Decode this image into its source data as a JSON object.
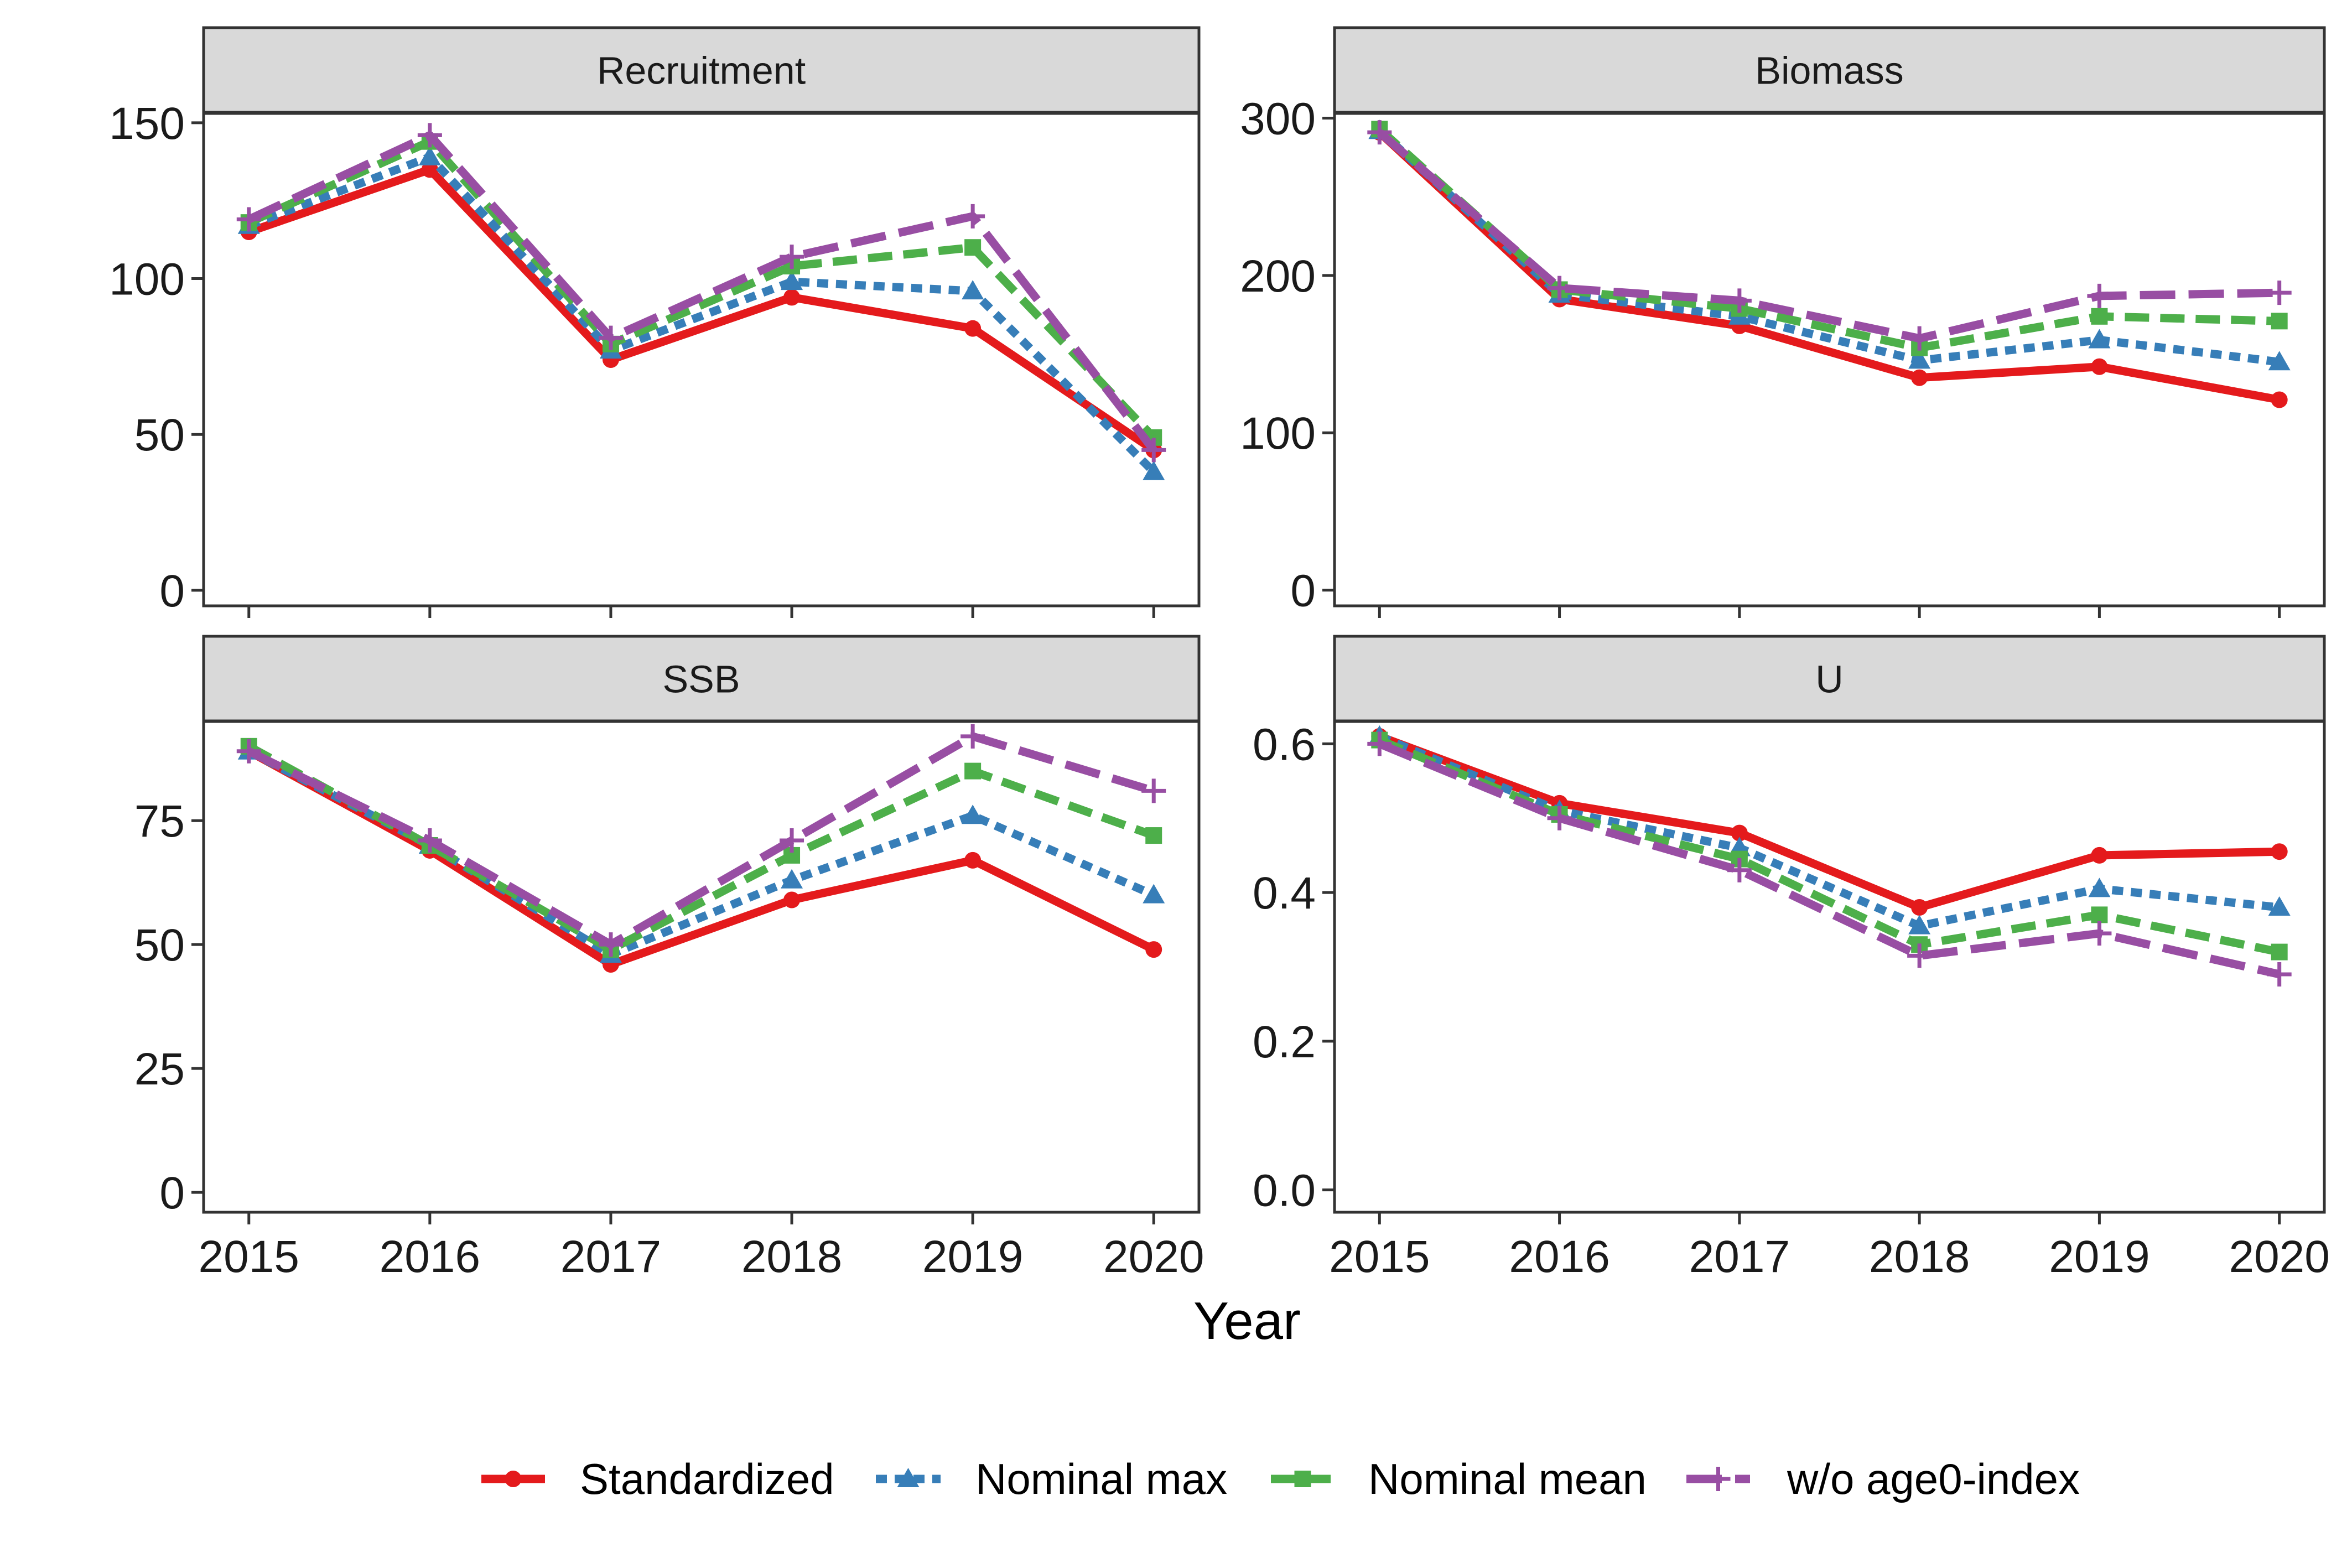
{
  "chart_data": [
    {
      "type": "line",
      "title": "Recruitment",
      "xlabel": "Year",
      "ylabel": "",
      "x": [
        2015,
        2016,
        2017,
        2018,
        2019,
        2020
      ],
      "ylim": [
        -5,
        153
      ],
      "yticks": [
        0,
        50,
        100,
        150
      ],
      "ytick_labels": [
        "0",
        "50",
        "100",
        "150"
      ],
      "grid": false,
      "series": [
        {
          "name": "Standardized",
          "values": [
            115,
            135,
            74,
            94,
            84,
            45
          ]
        },
        {
          "name": "Nominal max",
          "values": [
            117,
            139,
            77,
            99,
            96,
            38
          ]
        },
        {
          "name": "Nominal mean",
          "values": [
            118,
            144,
            79,
            104,
            110,
            49
          ]
        },
        {
          "name": "w/o age0-index",
          "values": [
            119,
            146,
            81,
            107,
            120,
            45
          ]
        }
      ]
    },
    {
      "type": "line",
      "title": "Biomass",
      "xlabel": "Year",
      "ylabel": "",
      "x": [
        2015,
        2016,
        2017,
        2018,
        2019,
        2020
      ],
      "ylim": [
        -10,
        303
      ],
      "yticks": [
        0,
        100,
        200,
        300
      ],
      "ytick_labels": [
        "0",
        "100",
        "200",
        "300"
      ],
      "grid": false,
      "series": [
        {
          "name": "Standardized",
          "values": [
            291,
            185,
            168,
            135,
            142,
            121
          ]
        },
        {
          "name": "Nominal max",
          "values": [
            292,
            188,
            174,
            146,
            159,
            145
          ]
        },
        {
          "name": "Nominal mean",
          "values": [
            293,
            191,
            179,
            154,
            174,
            171
          ]
        },
        {
          "name": "w/o age0-index",
          "values": [
            291,
            192,
            184,
            160,
            187,
            189
          ]
        }
      ]
    },
    {
      "type": "line",
      "title": "SSB",
      "xlabel": "Year",
      "ylabel": "",
      "x": [
        2015,
        2016,
        2017,
        2018,
        2019,
        2020
      ],
      "ylim": [
        -4,
        95
      ],
      "yticks": [
        0,
        25,
        50,
        75
      ],
      "ytick_labels": [
        "0",
        "25",
        "50",
        "75"
      ],
      "grid": false,
      "series": [
        {
          "name": "Standardized",
          "values": [
            89,
            69,
            46,
            59,
            67,
            49
          ]
        },
        {
          "name": "Nominal max",
          "values": [
            89,
            70,
            48,
            63,
            76,
            60
          ]
        },
        {
          "name": "Nominal mean",
          "values": [
            90,
            70,
            49,
            68,
            85,
            72
          ]
        },
        {
          "name": "w/o age0-index",
          "values": [
            89,
            71,
            50,
            71,
            92,
            81
          ]
        }
      ]
    },
    {
      "type": "line",
      "title": "U",
      "xlabel": "Year",
      "ylabel": "",
      "x": [
        2015,
        2016,
        2017,
        2018,
        2019,
        2020
      ],
      "ylim": [
        -0.03,
        0.63
      ],
      "yticks": [
        0.0,
        0.2,
        0.4,
        0.6
      ],
      "ytick_labels": [
        "0.0",
        "0.2",
        "0.4",
        "0.6"
      ],
      "grid": false,
      "series": [
        {
          "name": "Standardized",
          "values": [
            0.61,
            0.52,
            0.48,
            0.38,
            0.45,
            0.455
          ]
        },
        {
          "name": "Nominal max",
          "values": [
            0.61,
            0.51,
            0.46,
            0.355,
            0.405,
            0.38
          ]
        },
        {
          "name": "Nominal mean",
          "values": [
            0.605,
            0.505,
            0.445,
            0.33,
            0.37,
            0.32
          ]
        },
        {
          "name": "w/o age0-index",
          "values": [
            0.6,
            0.5,
            0.43,
            0.315,
            0.345,
            0.29
          ]
        }
      ]
    }
  ],
  "x_tick_labels": [
    "2015",
    "2016",
    "2017",
    "2018",
    "2019",
    "2020"
  ],
  "x_axis_title": "Year",
  "legend": {
    "position": "bottom",
    "items": [
      {
        "label": "Standardized",
        "color": "#e41a1c",
        "marker": "circle",
        "linetype": "solid"
      },
      {
        "label": "Nominal max",
        "color": "#377eb8",
        "marker": "triangle",
        "linetype": "dotted"
      },
      {
        "label": "Nominal mean",
        "color": "#4daf4a",
        "marker": "square",
        "linetype": "dashed"
      },
      {
        "label": "w/o age0-index",
        "color": "#984ea3",
        "marker": "plus",
        "linetype": "longdash"
      }
    ]
  },
  "strip_color": "#d9d9d9"
}
